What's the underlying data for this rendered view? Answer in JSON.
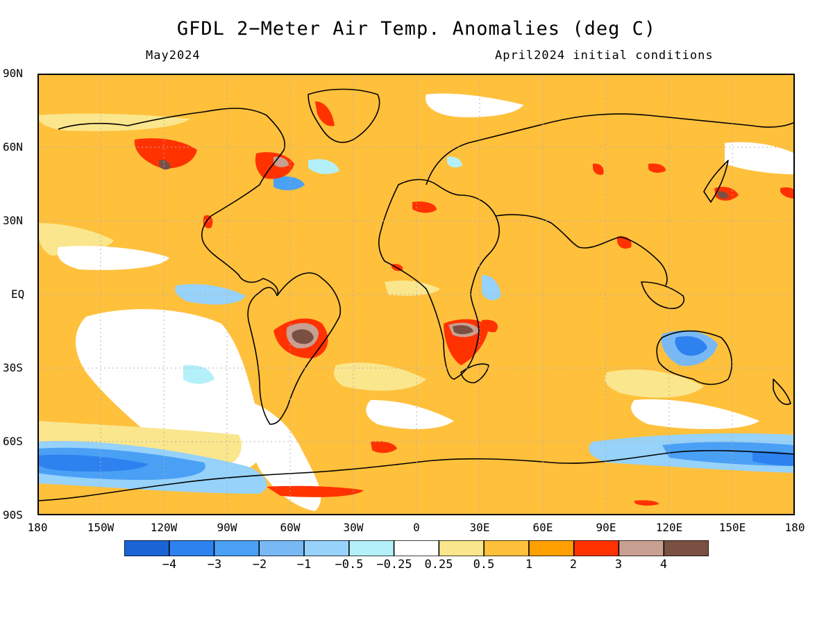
{
  "header": {
    "title": "GFDL 2−Meter Air Temp. Anomalies (deg C)",
    "valid_month": "May2024",
    "initial_conditions": "April2024 initial conditions"
  },
  "axes": {
    "lat_labels": [
      "90N",
      "60N",
      "30N",
      "EQ",
      "30S",
      "60S",
      "90S"
    ],
    "lon_labels": [
      "180",
      "150W",
      "120W",
      "90W",
      "60W",
      "30W",
      "0",
      "30E",
      "60E",
      "90E",
      "120E",
      "150E",
      "180"
    ]
  },
  "map": {
    "projection": "equirectangular",
    "extent": {
      "lon": [
        -180,
        180
      ],
      "lat": [
        -90,
        90
      ]
    },
    "gridlines": "dotted, every 30 degrees",
    "features": [
      "coastlines",
      "temperature-anomaly-shading"
    ]
  },
  "legend": {
    "colors": [
      "#1a64d6",
      "#2e82ef",
      "#4aa0f5",
      "#78b9f5",
      "#96d2fa",
      "#b4f0fa",
      "#ffffff",
      "#fae68c",
      "#ffc03c",
      "#ffa000",
      "#ff3200",
      "#c8a092",
      "#7a5042"
    ],
    "values": [
      "−4",
      "−3",
      "−2",
      "−1",
      "−0.5",
      "−0.25",
      "0.25",
      "0.5",
      "1",
      "2",
      "3",
      "4"
    ]
  },
  "palette": {
    "cold4": "#1a64d6",
    "cold3": "#2e82ef",
    "cold2": "#4aa0f5",
    "cold1": "#78b9f5",
    "cold05": "#96d2fa",
    "cold025": "#b4f0fa",
    "neutral": "#ffffff",
    "warm025": "#fae68c",
    "warm05": "#ffc03c",
    "warm1": "#ffa000",
    "warm2": "#ff3200",
    "warm3": "#c8a092",
    "warm4": "#7a5042"
  }
}
